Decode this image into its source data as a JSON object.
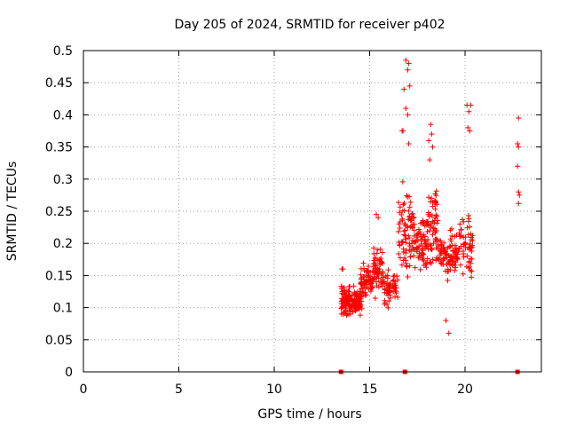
{
  "chart_data": {
    "type": "scatter",
    "title": "Day 205 of 2024, SRMTID for receiver p402",
    "xlabel": "GPS time / hours",
    "ylabel": "SRMTID / TECUs",
    "xlim": [
      0,
      24
    ],
    "ylim": [
      0,
      0.5
    ],
    "x_ticks": [
      0,
      5,
      10,
      15,
      20
    ],
    "x_tick_labels": [
      "0",
      "5",
      "10",
      "15",
      "20"
    ],
    "y_ticks": [
      0,
      0.05,
      0.1,
      0.15,
      0.2,
      0.25,
      0.3,
      0.35,
      0.4,
      0.45,
      0.5
    ],
    "y_tick_labels": [
      "0",
      "0.05",
      "0.1",
      "0.15",
      "0.2",
      "0.25",
      "0.3",
      "0.35",
      "0.4",
      "0.45",
      "0.5"
    ],
    "grid": true,
    "marker": "plus",
    "series_color": "#ff0000",
    "clusters": [
      {
        "x_start": 13.5,
        "x_end": 14.6,
        "y_center": 0.11,
        "y_spread": 0.03,
        "count": 160
      },
      {
        "x_start": 14.5,
        "x_end": 15.2,
        "y_center": 0.14,
        "y_spread": 0.035,
        "count": 70
      },
      {
        "x_start": 15.2,
        "x_end": 15.7,
        "y_center": 0.16,
        "y_spread": 0.05,
        "count": 55
      },
      {
        "x_start": 15.7,
        "x_end": 16.5,
        "y_center": 0.13,
        "y_spread": 0.035,
        "count": 60
      },
      {
        "x_start": 16.5,
        "x_end": 17.3,
        "y_center": 0.22,
        "y_spread": 0.09,
        "count": 80
      },
      {
        "x_start": 17.3,
        "x_end": 18.0,
        "y_center": 0.2,
        "y_spread": 0.06,
        "count": 70
      },
      {
        "x_start": 18.0,
        "x_end": 18.6,
        "y_center": 0.22,
        "y_spread": 0.09,
        "count": 70
      },
      {
        "x_start": 18.6,
        "x_end": 19.6,
        "y_center": 0.18,
        "y_spread": 0.05,
        "count": 90
      },
      {
        "x_start": 19.6,
        "x_end": 20.4,
        "y_center": 0.2,
        "y_spread": 0.08,
        "count": 60
      }
    ],
    "extra_points": [
      [
        16.9,
        0.485
      ],
      [
        17.05,
        0.48
      ],
      [
        17.1,
        0.445
      ],
      [
        16.8,
        0.44
      ],
      [
        17.0,
        0.47
      ],
      [
        16.9,
        0.41
      ],
      [
        17.0,
        0.4
      ],
      [
        16.7,
        0.375
      ],
      [
        16.75,
        0.375
      ],
      [
        17.05,
        0.355
      ],
      [
        20.1,
        0.415
      ],
      [
        20.3,
        0.415
      ],
      [
        20.2,
        0.405
      ],
      [
        20.15,
        0.38
      ],
      [
        20.25,
        0.375
      ],
      [
        18.2,
        0.385
      ],
      [
        18.25,
        0.37
      ],
      [
        18.1,
        0.36
      ],
      [
        18.3,
        0.35
      ],
      [
        18.15,
        0.33
      ],
      [
        22.8,
        0.395
      ],
      [
        22.75,
        0.355
      ],
      [
        22.8,
        0.35
      ],
      [
        22.75,
        0.32
      ],
      [
        22.8,
        0.28
      ],
      [
        22.85,
        0.275
      ],
      [
        22.8,
        0.262
      ],
      [
        19.15,
        0.06
      ],
      [
        19.0,
        0.08
      ],
      [
        13.6,
        0.16
      ],
      [
        13.55,
        0.16
      ],
      [
        15.35,
        0.245
      ],
      [
        15.45,
        0.24
      ]
    ],
    "zero_points": [
      [
        13.5,
        0.0
      ],
      [
        16.85,
        0.0
      ],
      [
        22.75,
        0.0
      ]
    ]
  }
}
